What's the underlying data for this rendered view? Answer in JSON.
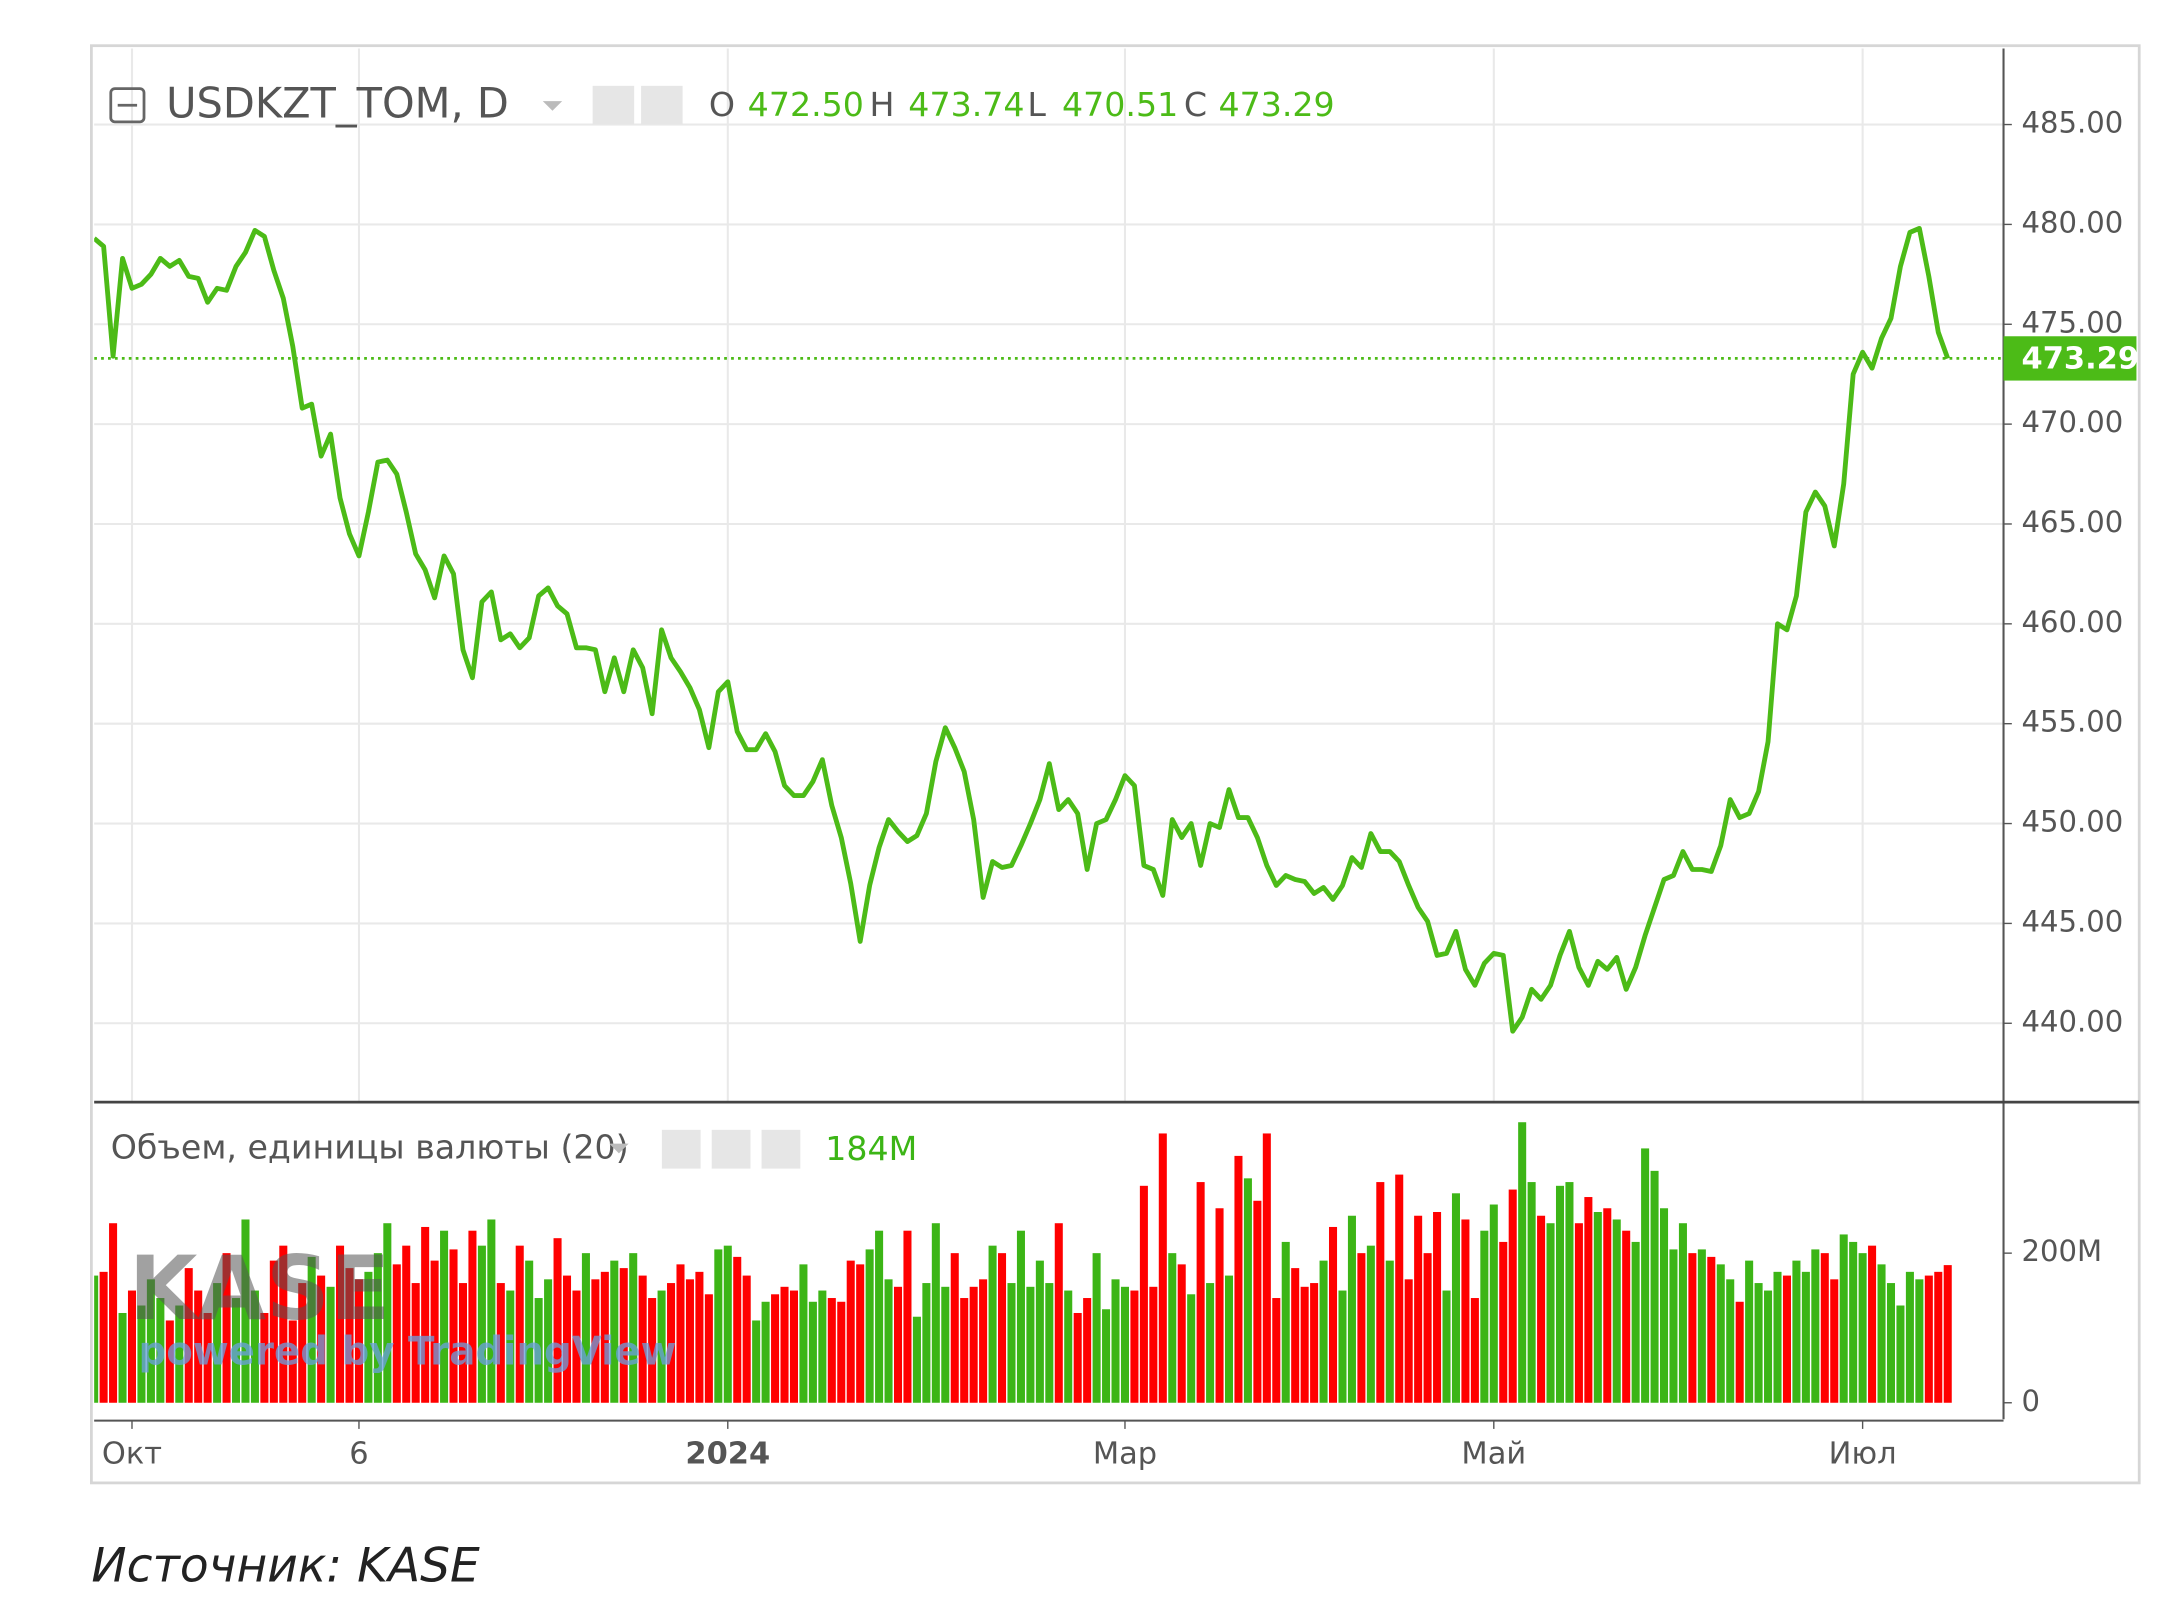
{
  "chart_data": [
    {
      "type": "line",
      "title": "USDKZT_TOM, D",
      "ohlc": [
        {
          "key": "O",
          "value": "472.50"
        },
        {
          "key": "H",
          "value": "473.74"
        },
        {
          "key": "L",
          "value": "470.51"
        },
        {
          "key": "C",
          "value": "473.29"
        }
      ],
      "color": "#4cbb17",
      "values": [
        479.3,
        478.9,
        473.4,
        478.3,
        476.8,
        477.0,
        477.5,
        478.3,
        477.9,
        478.2,
        477.4,
        477.3,
        476.1,
        476.8,
        476.7,
        477.9,
        478.6,
        479.7,
        479.4,
        477.7,
        476.3,
        473.9,
        470.8,
        471.0,
        468.4,
        469.5,
        466.3,
        464.5,
        463.4,
        465.6,
        468.1,
        468.2,
        467.5,
        465.6,
        463.5,
        462.7,
        461.3,
        463.4,
        462.5,
        458.7,
        457.3,
        461.1,
        461.6,
        459.2,
        459.5,
        458.8,
        459.3,
        461.4,
        461.8,
        460.9,
        460.5,
        458.8,
        458.8,
        458.7,
        456.6,
        458.3,
        456.6,
        458.7,
        457.8,
        455.5,
        459.7,
        458.3,
        457.6,
        456.8,
        455.7,
        453.8,
        456.6,
        457.1,
        454.6,
        453.7,
        453.7,
        454.5,
        453.6,
        451.9,
        451.4,
        451.4,
        452.1,
        453.2,
        450.9,
        449.3,
        447.0,
        444.1,
        446.9,
        448.8,
        450.2,
        449.6,
        449.1,
        449.4,
        450.5,
        453.1,
        454.8,
        453.8,
        452.6,
        450.2,
        446.3,
        448.1,
        447.8,
        447.9,
        448.9,
        450.0,
        451.2,
        453.0,
        450.7,
        451.2,
        450.5,
        447.7,
        450.0,
        450.2,
        451.2,
        452.4,
        451.9,
        447.9,
        447.7,
        446.4,
        450.2,
        449.3,
        450.0,
        447.9,
        450.0,
        449.8,
        451.7,
        450.3,
        450.3,
        449.3,
        447.9,
        446.9,
        447.4,
        447.2,
        447.1,
        446.5,
        446.8,
        446.2,
        446.9,
        448.3,
        447.8,
        449.5,
        448.6,
        448.6,
        448.1,
        446.9,
        445.8,
        445.1,
        443.4,
        443.5,
        444.6,
        442.7,
        441.9,
        443.0,
        443.5,
        443.4,
        439.6,
        440.3,
        441.7,
        441.2,
        441.9,
        443.4,
        444.6,
        442.8,
        441.9,
        443.1,
        442.7,
        443.3,
        441.7,
        442.8,
        444.4,
        445.8,
        447.2,
        447.4,
        448.6,
        447.7,
        447.7,
        447.6,
        448.9,
        451.2,
        450.3,
        450.5,
        451.6,
        454.1,
        460.0,
        459.7,
        461.4,
        465.6,
        466.6,
        465.9,
        463.9,
        467.0,
        472.5,
        473.6,
        472.8,
        474.3,
        475.3,
        477.9,
        479.6,
        479.8,
        477.4,
        474.6,
        473.29
      ],
      "last_label": "473.29",
      "ylim": [
        436.12,
        488.81
      ],
      "yticks": [
        {
          "value": 440,
          "label": "440.00"
        },
        {
          "value": 445,
          "label": "445.00"
        },
        {
          "value": 450,
          "label": "450.00"
        },
        {
          "value": 455,
          "label": "455.00"
        },
        {
          "value": 460,
          "label": "460.00"
        },
        {
          "value": 465,
          "label": "465.00"
        },
        {
          "value": 470,
          "label": "470.00"
        },
        {
          "value": 475,
          "label": "475.00"
        },
        {
          "value": 480,
          "label": "480.00"
        },
        {
          "value": 485,
          "label": "485.00"
        }
      ],
      "xlim": [
        0,
        201.9
      ],
      "xticks": [
        {
          "value": 4,
          "label": "Окт"
        },
        {
          "value": 28,
          "label": "6"
        },
        {
          "value": 67,
          "label": "2024"
        },
        {
          "value": 109,
          "label": "Мар"
        },
        {
          "value": 148,
          "label": "Май"
        },
        {
          "value": 187,
          "label": "Июл"
        }
      ],
      "grid": true
    },
    {
      "type": "bar",
      "title": "Объем, единицы валюты (20)",
      "up_color": "#3cb516",
      "down_color": "#ff0000",
      "values": [
        170,
        175,
        240,
        120,
        150,
        130,
        165,
        140,
        110,
        130,
        180,
        150,
        120,
        160,
        200,
        140,
        245,
        150,
        120,
        190,
        210,
        110,
        160,
        195,
        170,
        155,
        210,
        180,
        165,
        175,
        200,
        240,
        185,
        210,
        160,
        235,
        190,
        230,
        205,
        160,
        230,
        210,
        245,
        160,
        150,
        210,
        190,
        140,
        165,
        220,
        170,
        150,
        200,
        165,
        175,
        190,
        180,
        200,
        170,
        140,
        150,
        160,
        185,
        165,
        175,
        145,
        205,
        210,
        195,
        170,
        110,
        135,
        145,
        155,
        150,
        185,
        135,
        150,
        140,
        135,
        190,
        185,
        205,
        230,
        165,
        155,
        230,
        115,
        160,
        240,
        155,
        200,
        140,
        155,
        165,
        210,
        200,
        160,
        230,
        155,
        190,
        160,
        240,
        150,
        120,
        140,
        200,
        125,
        165,
        155,
        150,
        290,
        155,
        360,
        200,
        185,
        145,
        295,
        160,
        260,
        170,
        330,
        300,
        270,
        360,
        140,
        215,
        180,
        155,
        160,
        190,
        235,
        150,
        250,
        200,
        210,
        295,
        190,
        305,
        165,
        250,
        200,
        255,
        150,
        280,
        245,
        140,
        230,
        265,
        215,
        285,
        375,
        295,
        250,
        240,
        290,
        295,
        240,
        275,
        255,
        260,
        245,
        230,
        215,
        340,
        310,
        260,
        205,
        240,
        200,
        205,
        195,
        185,
        165,
        135,
        190,
        160,
        150,
        175,
        170,
        190,
        175,
        205,
        200,
        165,
        225,
        215,
        200,
        210,
        185,
        160,
        130,
        175,
        165,
        170,
        175,
        184
      ],
      "last_label": "184M",
      "ylim": [
        -22,
        400
      ],
      "yticks": [
        0,
        {
          "value": 200,
          "label": "200M"
        }
      ],
      "grid": false
    }
  ],
  "watermark": {
    "brand": "KASE",
    "powered": "powered by TradingView"
  },
  "caption": "Источник: KASE"
}
